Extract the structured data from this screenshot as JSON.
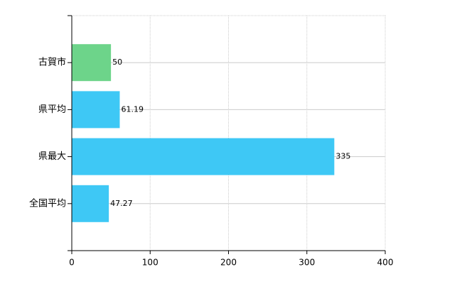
{
  "chart_data": {
    "type": "bar",
    "orientation": "horizontal",
    "categories": [
      "古賀市",
      "県平均",
      "県最大",
      "全国平均"
    ],
    "values": [
      50,
      61.19,
      335,
      47.27
    ],
    "colors": [
      "#6dd48a",
      "#3ec8f5",
      "#3ec8f5",
      "#3ec8f5"
    ],
    "xlim": [
      0,
      400
    ],
    "xticks": [
      0,
      100,
      200,
      300,
      400
    ],
    "grid": true
  }
}
